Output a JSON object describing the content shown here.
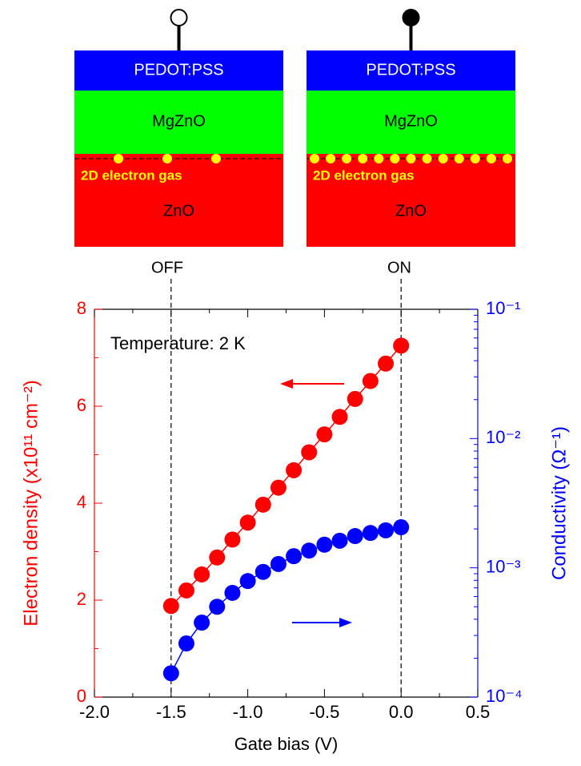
{
  "diagram": {
    "devices": [
      {
        "layers": [
          "PEDOT:PSS",
          "MgZnO",
          "ZnO"
        ],
        "gas_label": "2D electron gas",
        "state": "OFF"
      },
      {
        "layers": [
          "PEDOT:PSS",
          "MgZnO",
          "ZnO"
        ],
        "gas_label": "2D electron gas",
        "state": "ON"
      }
    ]
  },
  "chart_data": {
    "type": "scatter",
    "annotation": "Temperature: 2 K",
    "x_label": "Gate bias  (V)",
    "y_label": "Electron density (x10¹¹ cm⁻²)",
    "y2_label": "Conductivity (Ω⁻¹)",
    "x": [
      -1.5,
      -1.4,
      -1.3,
      -1.2,
      -1.1,
      -1.0,
      -0.9,
      -0.8,
      -0.7,
      -0.6,
      -0.5,
      -0.4,
      -0.3,
      -0.2,
      -0.1,
      0.0
    ],
    "series": [
      {
        "color": "#ff0000",
        "values": [
          1.88,
          2.2,
          2.53,
          2.88,
          3.25,
          3.6,
          3.97,
          4.32,
          4.68,
          5.05,
          5.42,
          5.78,
          6.15,
          6.52,
          6.88,
          7.25
        ]
      },
      {
        "color": "#0000ff",
        "axis": "y2",
        "values": [
          0.000153,
          0.00026,
          0.000377,
          0.0005,
          0.00064,
          0.00079,
          0.00093,
          0.00107,
          0.00123,
          0.00136,
          0.00151,
          0.00162,
          0.00176,
          0.00186,
          0.00195,
          0.00206
        ]
      }
    ],
    "xlim": [
      -2.0,
      0.5
    ],
    "xticks": [
      {
        "value": -2,
        "label": "-2.0"
      },
      -1.5,
      {
        "value": -1,
        "label": "-1.0"
      },
      -0.5,
      {
        "value": 0,
        "label": "0.0"
      },
      0.5
    ],
    "xminorticks": [
      -1.75,
      -1.25,
      -0.75,
      -0.25,
      0.25
    ],
    "ylim": [
      0,
      8
    ],
    "yticks": [
      0,
      2,
      4,
      6,
      8
    ],
    "yminorticks": [
      1,
      3,
      5,
      7
    ],
    "y2lim": [
      0.0001,
      0.1
    ],
    "y2scale": "log",
    "y2ticks": [
      {
        "value": 0.0001,
        "label": "10⁻⁴"
      },
      {
        "value": 0.001,
        "label": "10⁻³"
      },
      {
        "value": 0.01,
        "label": "10⁻²"
      },
      {
        "value": 0.1,
        "label": "10⁻¹"
      }
    ],
    "y2minorticks": [
      0.0002,
      0.0003,
      0.0004,
      0.0005,
      0.0006,
      0.0007,
      0.0008,
      0.0009,
      0.002,
      0.003,
      0.004,
      0.005,
      0.006,
      0.007,
      0.008,
      0.009,
      0.02,
      0.03,
      0.04,
      0.05,
      0.06,
      0.07,
      0.08,
      0.09
    ],
    "reference_lines_x": [
      -1.5,
      0.0
    ]
  }
}
